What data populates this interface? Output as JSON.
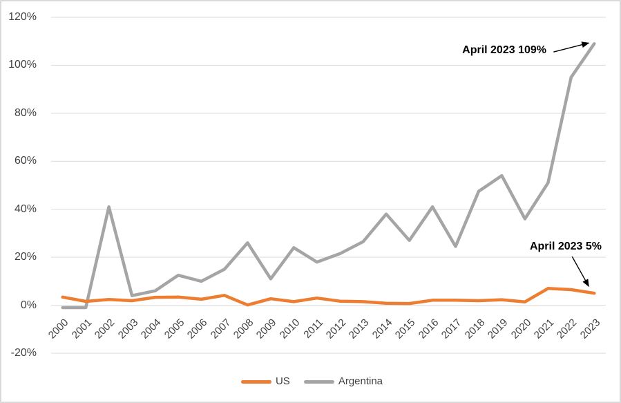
{
  "chart_data": {
    "type": "line",
    "title": "",
    "categories": [
      "2000",
      "2001",
      "2002",
      "2003",
      "2004",
      "2005",
      "2006",
      "2007",
      "2008",
      "2009",
      "2010",
      "2011",
      "2012",
      "2013",
      "2014",
      "2015",
      "2016",
      "2017",
      "2018",
      "2019",
      "2020",
      "2021",
      "2022",
      "2023"
    ],
    "series": [
      {
        "name": "US",
        "color": "#ED7D31",
        "values": [
          3.4,
          1.6,
          2.4,
          1.9,
          3.3,
          3.4,
          2.5,
          4.1,
          0.1,
          2.7,
          1.5,
          3.0,
          1.7,
          1.5,
          0.8,
          0.7,
          2.1,
          2.1,
          1.9,
          2.3,
          1.4,
          7.0,
          6.5,
          5.0
        ]
      },
      {
        "name": "Argentina",
        "color": "#A5A5A5",
        "values": [
          -1,
          -1,
          41,
          4,
          6,
          12.5,
          10,
          15,
          26,
          11,
          24,
          18,
          21.5,
          26.5,
          38,
          27,
          41,
          24.5,
          47.5,
          54,
          36,
          51,
          95,
          109
        ]
      }
    ],
    "ylim": [
      -20,
      120
    ],
    "ytick_step": 20,
    "ytick_suffix": "%",
    "grid": true,
    "gridline_color": "#D9D9D9",
    "tick_label_color": "#404040",
    "legend_position": "bottom",
    "annotations": [
      {
        "text": "April 2023 109%",
        "series": "Argentina",
        "category": "2023",
        "value": 109
      },
      {
        "text": "April 2023 5%",
        "series": "US",
        "category": "2023",
        "value": 5
      }
    ],
    "annotation_color": "#000000"
  },
  "legend": {
    "items": [
      {
        "label": "US"
      },
      {
        "label": "Argentina"
      }
    ]
  }
}
